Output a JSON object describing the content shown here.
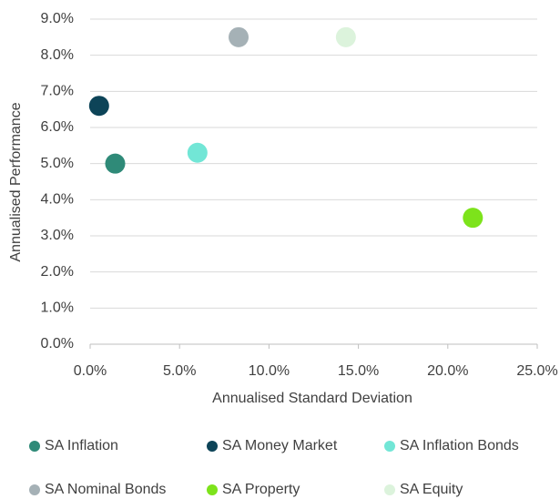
{
  "chart_data": {
    "type": "scatter",
    "xlabel": "Annualised Standard Deviation",
    "ylabel": "Annualised Performance",
    "xlim": [
      0,
      25
    ],
    "xticks": [
      {
        "value": 0,
        "label": "0.0%"
      },
      {
        "value": 5,
        "label": "5.0%"
      },
      {
        "value": 10,
        "label": "10.0%"
      },
      {
        "value": 15,
        "label": "15.0%"
      },
      {
        "value": 20,
        "label": "20.0%"
      },
      {
        "value": 25,
        "label": "25.0%"
      }
    ],
    "ylim": [
      0,
      9
    ],
    "yticks": [
      {
        "value": 0,
        "label": "0.0%"
      },
      {
        "value": 1,
        "label": "1.0%"
      },
      {
        "value": 2,
        "label": "2.0%"
      },
      {
        "value": 3,
        "label": "3.0%"
      },
      {
        "value": 4,
        "label": "4.0%"
      },
      {
        "value": 5,
        "label": "5.0%"
      },
      {
        "value": 6,
        "label": "6.0%"
      },
      {
        "value": 7,
        "label": "7.0%"
      },
      {
        "value": 8,
        "label": "8.0%"
      },
      {
        "value": 9,
        "label": "9.0%"
      }
    ],
    "grid": true,
    "legend": "bottom",
    "series": [
      {
        "name": "SA Inflation",
        "color": "#2f8a78",
        "x": [
          1.4
        ],
        "values": [
          5.0
        ]
      },
      {
        "name": "SA Money Market",
        "color": "#0d4458",
        "x": [
          0.5
        ],
        "values": [
          6.6
        ]
      },
      {
        "name": "SA Inflation Bonds",
        "color": "#72e6d6",
        "x": [
          6.0
        ],
        "values": [
          5.3
        ]
      },
      {
        "name": "SA Nominal Bonds",
        "color": "#a5b1b6",
        "x": [
          8.3
        ],
        "values": [
          8.5
        ]
      },
      {
        "name": "SA Property",
        "color": "#7de31b",
        "x": [
          21.4
        ],
        "values": [
          3.5
        ]
      },
      {
        "name": "SA Equity",
        "color": "#dcf3dc",
        "x": [
          14.3
        ],
        "values": [
          8.5
        ]
      }
    ]
  }
}
